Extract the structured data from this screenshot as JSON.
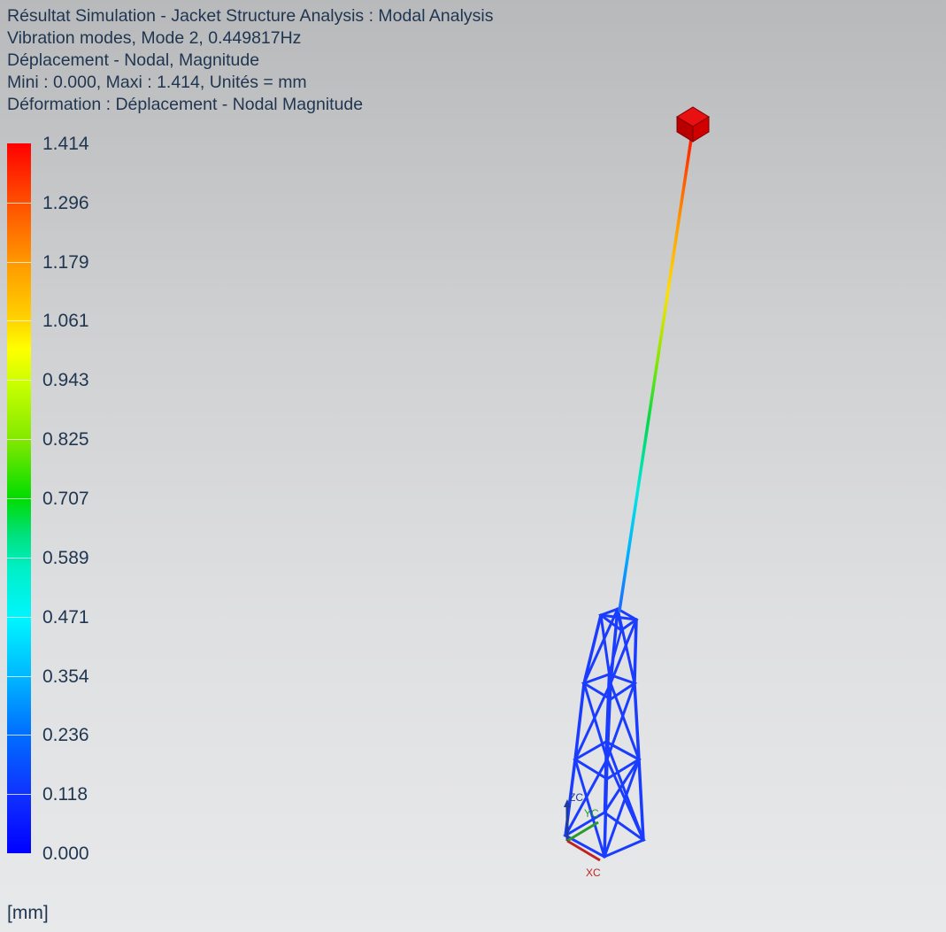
{
  "header": {
    "line1": "Résultat Simulation - Jacket Structure Analysis : Modal Analysis",
    "line2": "Vibration modes, Mode 2, 0.449817Hz",
    "line3": "Déplacement - Nodal, Magnitude",
    "line4": "Mini : 0.000, Maxi : 1.414, Unités = mm",
    "line5": "Déformation : Déplacement - Nodal Magnitude"
  },
  "legend": {
    "labels": [
      "1.414",
      "1.296",
      "1.179",
      "1.061",
      "0.943",
      "0.825",
      "0.707",
      "0.589",
      "0.471",
      "0.354",
      "0.236",
      "0.118",
      "0.000"
    ],
    "units": "[mm]",
    "max_color": "#ff0000",
    "min_color": "#0000ff"
  },
  "triad": {
    "x": "XC",
    "y": "YC",
    "z": "ZC"
  },
  "colors": {
    "structure": "#1a3cff",
    "mass_cube": "#cc0000",
    "text": "#1f3550"
  }
}
